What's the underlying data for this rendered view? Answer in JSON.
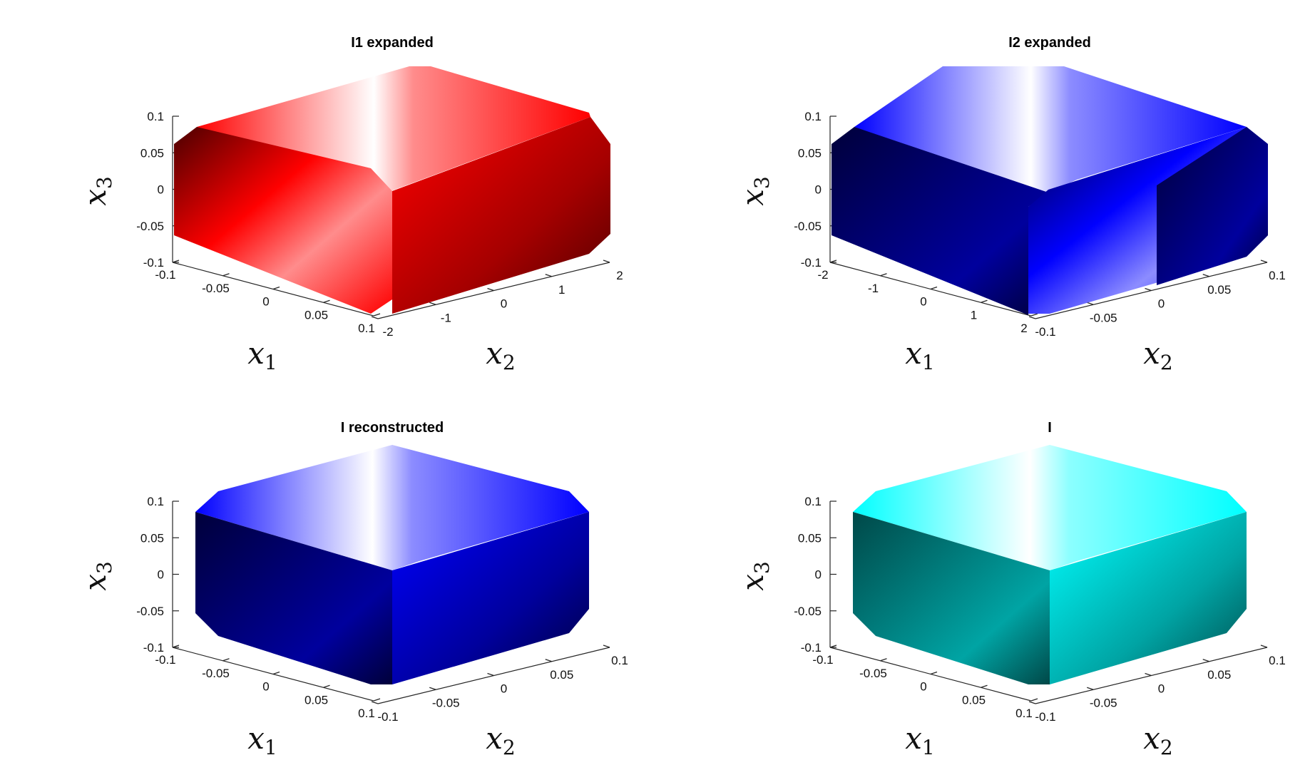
{
  "chart_data": [
    {
      "type": "surface3d",
      "title": "I1 expanded",
      "color": "#ff0000",
      "shade_dark": "#4a0000",
      "view": "x1-left",
      "xlabel": "x",
      "xlabel_sub": "1",
      "ylabel": "x",
      "ylabel_sub": "2",
      "zlabel": "x",
      "zlabel_sub": "3",
      "x_range": [
        -0.1,
        0.1
      ],
      "y_range": [
        -2,
        2
      ],
      "z_range": [
        -0.1,
        0.1
      ],
      "x_ticks": [
        "-0.1",
        "-0.05",
        "0",
        "0.05",
        "0.1"
      ],
      "y_ticks": [
        "-2",
        "-1",
        "0",
        "1",
        "2"
      ],
      "z_ticks": [
        "0.1",
        "0.05",
        "0",
        "-0.05",
        "-0.1"
      ]
    },
    {
      "type": "surface3d",
      "title": "I2 expanded",
      "color": "#0000ff",
      "shade_dark": "#00003a",
      "view": "x1-left",
      "xlabel": "x",
      "xlabel_sub": "1",
      "ylabel": "x",
      "ylabel_sub": "2",
      "zlabel": "x",
      "zlabel_sub": "3",
      "x_range": [
        -2,
        2
      ],
      "y_range": [
        -0.1,
        0.1
      ],
      "z_range": [
        -0.1,
        0.1
      ],
      "x_ticks": [
        "-2",
        "-1",
        "0",
        "1",
        "2"
      ],
      "y_ticks": [
        "-0.1",
        "-0.05",
        "0",
        "0.05",
        "0.1"
      ],
      "z_ticks": [
        "0.1",
        "0.05",
        "0",
        "-0.05",
        "-0.1"
      ]
    },
    {
      "type": "surface3d",
      "title": "I reconstructed",
      "color": "#0000ff",
      "shade_dark": "#00003a",
      "view": "cube",
      "xlabel": "x",
      "xlabel_sub": "1",
      "ylabel": "x",
      "ylabel_sub": "2",
      "zlabel": "x",
      "zlabel_sub": "3",
      "x_range": [
        -0.1,
        0.1
      ],
      "y_range": [
        -0.1,
        0.1
      ],
      "z_range": [
        -0.1,
        0.1
      ],
      "x_ticks": [
        "-0.1",
        "-0.05",
        "0",
        "0.05",
        "0.1"
      ],
      "y_ticks": [
        "-0.1",
        "-0.05",
        "0",
        "0.05",
        "0.1"
      ],
      "z_ticks": [
        "0.1",
        "0.05",
        "0",
        "-0.05",
        "-0.1"
      ]
    },
    {
      "type": "surface3d",
      "title": "I",
      "color": "#00ffff",
      "shade_dark": "#004848",
      "view": "cube",
      "xlabel": "x",
      "xlabel_sub": "1",
      "ylabel": "x",
      "ylabel_sub": "2",
      "zlabel": "x",
      "zlabel_sub": "3",
      "x_range": [
        -0.1,
        0.1
      ],
      "y_range": [
        -0.1,
        0.1
      ],
      "z_range": [
        -0.1,
        0.1
      ],
      "x_ticks": [
        "-0.1",
        "-0.05",
        "0",
        "0.05",
        "0.1"
      ],
      "y_ticks": [
        "-0.1",
        "-0.05",
        "0",
        "0.05",
        "0.1"
      ],
      "z_ticks": [
        "0.1",
        "0.05",
        "0",
        "-0.05",
        "-0.1"
      ]
    }
  ]
}
